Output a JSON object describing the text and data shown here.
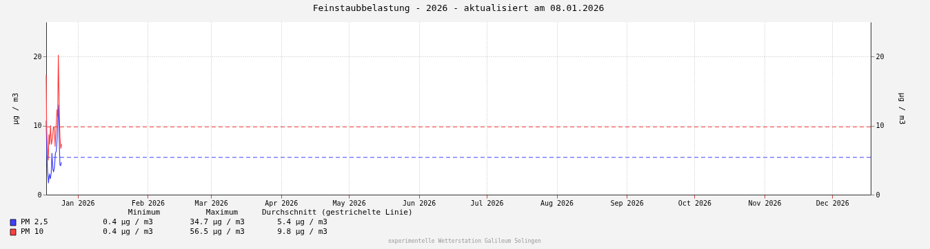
{
  "chart_data": {
    "type": "line",
    "title": "Feinstaubbelastung - 2026 - aktualisiert am 08.01.2026",
    "ylabel": "µg / m3",
    "y2label": "µg / m3",
    "xlim": [
      "2026-01-01",
      "2027-01-01"
    ],
    "xticks": [
      {
        "value": "2026-01-15",
        "label": "Jan 2026"
      },
      {
        "value": "2026-02-15",
        "label": "Feb 2026"
      },
      {
        "value": "2026-03-15",
        "label": "Mar 2026"
      },
      {
        "value": "2026-04-15",
        "label": "Apr 2026"
      },
      {
        "value": "2026-05-15",
        "label": "May 2026"
      },
      {
        "value": "2026-06-15",
        "label": "Jun 2026"
      },
      {
        "value": "2026-07-15",
        "label": "Jul 2026"
      },
      {
        "value": "2026-08-15",
        "label": "Aug 2026"
      },
      {
        "value": "2026-09-15",
        "label": "Sep 2026"
      },
      {
        "value": "2026-10-15",
        "label": "Oct 2026"
      },
      {
        "value": "2026-11-15",
        "label": "Nov 2026"
      },
      {
        "value": "2026-12-15",
        "label": "Dec 2026"
      }
    ],
    "ylim": [
      0,
      25
    ],
    "yticks": [
      0,
      10,
      20
    ],
    "y2lim": [
      0,
      25
    ],
    "y2ticks": [
      0,
      10,
      20
    ],
    "series": [
      {
        "name": "PM 2,5",
        "color": "#4040ff",
        "x": [
          "2026-01-01T00:00",
          "2026-01-01T07:00",
          "2026-01-01T15:00",
          "2026-01-02T00:00",
          "2026-01-02T10:00",
          "2026-01-02T20:00",
          "2026-01-03T06:00",
          "2026-01-03T13:00",
          "2026-01-03T23:00",
          "2026-01-04T06:00",
          "2026-01-04T16:00",
          "2026-01-05T02:00",
          "2026-01-05T11:00",
          "2026-01-05T21:00",
          "2026-01-06T05:00",
          "2026-01-06T12:00",
          "2026-01-06T19:00",
          "2026-01-07T02:00",
          "2026-01-07T10:00",
          "2026-01-07T17:00"
        ],
        "values": [
          10.7,
          6,
          3.3,
          1.7,
          3,
          2.3,
          3.2,
          6,
          3.7,
          3.3,
          4,
          6,
          6.3,
          8.3,
          11.3,
          13,
          7.7,
          4.3,
          4.2,
          4.7
        ]
      },
      {
        "name": "PM 10",
        "color": "#ff4040",
        "x": [
          "2026-01-01T00:00",
          "2026-01-01T05:00",
          "2026-01-01T12:00",
          "2026-01-01T22:00",
          "2026-01-02T05:00",
          "2026-01-02T13:00",
          "2026-01-02T22:00",
          "2026-01-03T08:00",
          "2026-01-03T18:00",
          "2026-01-04T04:00",
          "2026-01-04T13:00",
          "2026-01-04T23:00",
          "2026-01-05T09:00",
          "2026-01-05T19:00",
          "2026-01-06T02:00",
          "2026-01-06T09:00",
          "2026-01-06T19:00",
          "2026-01-07T02:00",
          "2026-01-07T12:00",
          "2026-01-07T20:00"
        ],
        "values": [
          17.3,
          9.7,
          7.3,
          5,
          8.7,
          7.3,
          10,
          7.3,
          8,
          9.7,
          9.7,
          7,
          9.7,
          12.3,
          11.3,
          20.2,
          12.3,
          8.3,
          6.7,
          7.3
        ]
      }
    ],
    "ref_lines": [
      {
        "axis": "y",
        "value": 5.4,
        "color": "#4040ff",
        "line_style": "dashed"
      },
      {
        "axis": "y",
        "value": 9.8,
        "color": "#ff4040",
        "line_style": "dashed"
      }
    ],
    "annotations": [
      "Minimum",
      "Maximum",
      "Durchschnitt (gestrichelte Linie)",
      "0.4 µg / m3",
      "34.7 µg / m3",
      "5.4 µg / m3",
      "0.4 µg / m3",
      "56.5 µg / m3",
      "9.8 µg / m3",
      "experimentelle Wetterstation Galileum Solingen"
    ],
    "grid": true,
    "legend": "bottom",
    "line_style": "solid",
    "marker": "none"
  }
}
